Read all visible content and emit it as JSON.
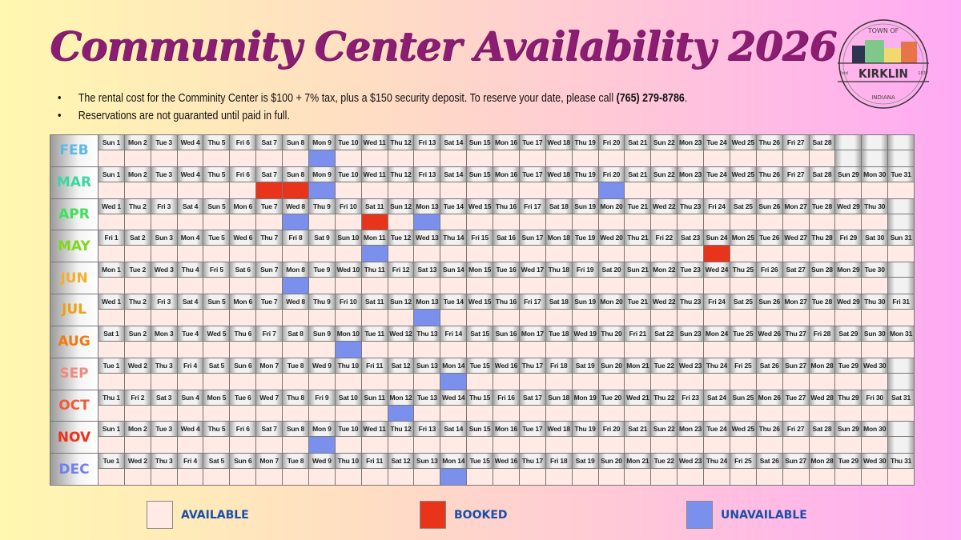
{
  "title": "Community Center Availability 2026",
  "logo": {
    "top": "TOWN OF",
    "name": "KIRKLIN",
    "bottom": "INDIANA",
    "est": "Estd",
    "year": "1837"
  },
  "bullets": [
    {
      "text": "The rental cost for the Comminity Center is $100 + 7% tax, plus a $150 security deposit. To reserve your date, please call ",
      "bold": "(765) 279-8786",
      "end": "."
    },
    {
      "text": "Reservations are not guaranted until paid in full."
    }
  ],
  "colors": {
    "available": "#ffeae6",
    "booked": "#e8341b",
    "unavailable": "#7b8fec",
    "title": "#8b1e72",
    "legend_text": "#1a4fa8"
  },
  "legend": [
    {
      "key": "available",
      "label": "AVAILABLE"
    },
    {
      "key": "booked",
      "label": "BOOKED"
    },
    {
      "key": "unavailable",
      "label": "UNAVAILABLE"
    }
  ],
  "months": [
    {
      "name": "FEB",
      "color": "#5cb8e6",
      "days": [
        "Sun 1",
        "Mon 2",
        "Tue 3",
        "Wed 4",
        "Thu 5",
        "Fri 6",
        "Sat 7",
        "Sun 8",
        "Mon 9",
        "Tue 10",
        "Wed 11",
        "Thu 12",
        "Fri 13",
        "Sat 14",
        "Sun 15",
        "Mon 16",
        "Tue 17",
        "Wed 18",
        "Thu 19",
        "Fri 20",
        "Sat 21",
        "Sun 22",
        "Mon 23",
        "Tue 24",
        "Wed 25",
        "Thu 26",
        "Fri 27",
        "Sat 28"
      ],
      "status": {
        "9": "unavailable"
      }
    },
    {
      "name": "MAR",
      "color": "#3dd6a0",
      "days": [
        "Sun 1",
        "Mon 2",
        "Tue 3",
        "Wed 4",
        "Thu 5",
        "Fri 6",
        "Sat 7",
        "Sun 8",
        "Mon 9",
        "Tue 10",
        "Wed 11",
        "Thu 12",
        "Fri 13",
        "Sat 14",
        "Sun 15",
        "Mon 16",
        "Tue 17",
        "Wed 18",
        "Thu 19",
        "Fri 20",
        "Sat 21",
        "Sun 22",
        "Mon 23",
        "Tue 24",
        "Wed 25",
        "Thu 26",
        "Fri 27",
        "Sat 28",
        "Sun 29",
        "Mon 30",
        "Tue 31"
      ],
      "status": {
        "7": "booked",
        "8": "booked",
        "9": "unavailable",
        "20": "unavailable"
      }
    },
    {
      "name": "APR",
      "color": "#3ee05a",
      "days": [
        "Wed 1",
        "Thu 2",
        "Fri 3",
        "Sat 4",
        "Sun 5",
        "Mon 6",
        "Tue 7",
        "Wed 8",
        "Thu 9",
        "Fri 10",
        "Sat 11",
        "Sun 12",
        "Mon 13",
        "Tue 14",
        "Wed 15",
        "Thu 16",
        "Fri 17",
        "Sat 18",
        "Sun 19",
        "Mon 20",
        "Tue 21",
        "Wed 22",
        "Thu 23",
        "Fri 24",
        "Sat 25",
        "Sun 26",
        "Mon 27",
        "Tue 28",
        "Wed 29",
        "Thu 30"
      ],
      "status": {
        "8": "unavailable",
        "11": "booked",
        "13": "unavailable"
      }
    },
    {
      "name": "MAY",
      "color": "#7ed81a",
      "days": [
        "Fri 1",
        "Sat 2",
        "Sun 3",
        "Mon 4",
        "Tue 5",
        "Wed 6",
        "Thu 7",
        "Fri 8",
        "Sat 9",
        "Sun 10",
        "Mon 11",
        "Tue 12",
        "Wed 13",
        "Thu 14",
        "Fri 15",
        "Sat 16",
        "Sun 17",
        "Mon 18",
        "Tue 19",
        "Wed 20",
        "Thu 21",
        "Fri 22",
        "Sat 23",
        "Sun 24",
        "Mon 25",
        "Tue 26",
        "Wed 27",
        "Thu 28",
        "Fri 29",
        "Sat 30",
        "Sun 31"
      ],
      "status": {
        "11": "unavailable",
        "24": "booked"
      }
    },
    {
      "name": "JUN",
      "color": "#f2b02a",
      "days": [
        "Mon 1",
        "Tue 2",
        "Wed 3",
        "Thu 4",
        "Fri 5",
        "Sat 6",
        "Sun 7",
        "Mon 8",
        "Tue 9",
        "Wed 10",
        "Thu 11",
        "Fri 12",
        "Sat 13",
        "Sun 14",
        "Mon 15",
        "Tue 16",
        "Wed 17",
        "Thu 18",
        "Fri 19",
        "Sat 20",
        "Sun 21",
        "Mon 22",
        "Tue 23",
        "Wed 24",
        "Thu 25",
        "Fri 26",
        "Sat 27",
        "Sun 28",
        "Mon 29",
        "Tue 30"
      ],
      "status": {
        "8": "unavailable"
      }
    },
    {
      "name": "JUL",
      "color": "#f0a010",
      "days": [
        "Wed 1",
        "Thu 2",
        "Fri 3",
        "Sat 4",
        "Sun 5",
        "Mon 6",
        "Tue 7",
        "Wed 8",
        "Thu 9",
        "Fri 10",
        "Sat 11",
        "Sun 12",
        "Mon 13",
        "Tue 14",
        "Wed 15",
        "Thu 16",
        "Fri 17",
        "Sat 18",
        "Sun 19",
        "Mon 20",
        "Tue 21",
        "Wed 22",
        "Thu 23",
        "Fri 24",
        "Sat 25",
        "Sun 26",
        "Mon 27",
        "Tue 28",
        "Wed 29",
        "Thu 30",
        "Fri 31"
      ],
      "status": {
        "13": "unavailable"
      }
    },
    {
      "name": "AUG",
      "color": "#f07a10",
      "days": [
        "Sat 1",
        "Sun 2",
        "Mon 3",
        "Tue 4",
        "Wed 5",
        "Thu 6",
        "Fri 7",
        "Sat 8",
        "Sun 9",
        "Mon 10",
        "Tue 11",
        "Wed 12",
        "Thu 13",
        "Fri 14",
        "Sat 15",
        "Sun 16",
        "Mon 17",
        "Tue 18",
        "Wed 19",
        "Thu 20",
        "Fri 21",
        "Sat 22",
        "Sun 23",
        "Mon 24",
        "Tue 25",
        "Wed 26",
        "Thu 27",
        "Fri 28",
        "Sat 29",
        "Sun 30",
        "Mon 31"
      ],
      "status": {
        "10": "unavailable"
      }
    },
    {
      "name": "SEP",
      "color": "#f08a80",
      "days": [
        "Tue 1",
        "Wed 2",
        "Thu 3",
        "Fri 4",
        "Sat 5",
        "Sun 6",
        "Mon 7",
        "Tue 8",
        "Wed 9",
        "Thu 10",
        "Fri 11",
        "Sat 12",
        "Sun 13",
        "Mon 14",
        "Tue 15",
        "Wed 16",
        "Thu 17",
        "Fri 18",
        "Sat 19",
        "Sun 20",
        "Mon 21",
        "Tue 22",
        "Wed 23",
        "Thu 24",
        "Fri 25",
        "Sat 26",
        "Sun 27",
        "Mon 28",
        "Tue 29",
        "Wed 30"
      ],
      "status": {
        "14": "unavailable"
      }
    },
    {
      "name": "OCT",
      "color": "#f05a3a",
      "days": [
        "Thu 1",
        "Fri 2",
        "Sat 3",
        "Sun 4",
        "Mon 5",
        "Tue 6",
        "Wed 7",
        "Thu 8",
        "Fri 9",
        "Sat 10",
        "Sun 11",
        "Mon 12",
        "Tue 13",
        "Wed 14",
        "Thu 15",
        "Fri 16",
        "Sat 17",
        "Sun 18",
        "Mon 19",
        "Tue 20",
        "Wed 21",
        "Thu 22",
        "Fri 23",
        "Sat 24",
        "Sun 25",
        "Mon 26",
        "Tue 27",
        "Wed 28",
        "Thu 29",
        "Fri 30",
        "Sat 31"
      ],
      "status": {
        "12": "unavailable"
      }
    },
    {
      "name": "NOV",
      "color": "#f0301a",
      "days": [
        "Sun 1",
        "Mon 2",
        "Tue 3",
        "Wed 4",
        "Thu 5",
        "Fri 6",
        "Sat 7",
        "Sun 8",
        "Mon 9",
        "Tue 10",
        "Wed 11",
        "Thu 12",
        "Fri 13",
        "Sat 14",
        "Sun 15",
        "Mon 16",
        "Tue 17",
        "Wed 18",
        "Thu 19",
        "Fri 20",
        "Sat 21",
        "Sun 22",
        "Mon 23",
        "Tue 24",
        "Wed 25",
        "Thu 26",
        "Fri 27",
        "Sat 28",
        "Sun 29",
        "Mon 30"
      ],
      "status": {
        "9": "unavailable"
      }
    },
    {
      "name": "DEC",
      "color": "#7080f0",
      "days": [
        "Tue 1",
        "Wed 2",
        "Thu 3",
        "Fri 4",
        "Sat 5",
        "Sun 6",
        "Mon 7",
        "Tue 8",
        "Wed 9",
        "Thu 10",
        "Fri 11",
        "Sat 12",
        "Sun 13",
        "Mon 14",
        "Tue 15",
        "Wed 16",
        "Thu 17",
        "Fri 18",
        "Sat 19",
        "Sun 20",
        "Mon 21",
        "Tue 22",
        "Wed 23",
        "Thu 24",
        "Fri 25",
        "Sat 26",
        "Sun 27",
        "Mon 28",
        "Tue 29",
        "Wed 30",
        "Thu 31"
      ],
      "status": {
        "14": "unavailable"
      }
    }
  ]
}
